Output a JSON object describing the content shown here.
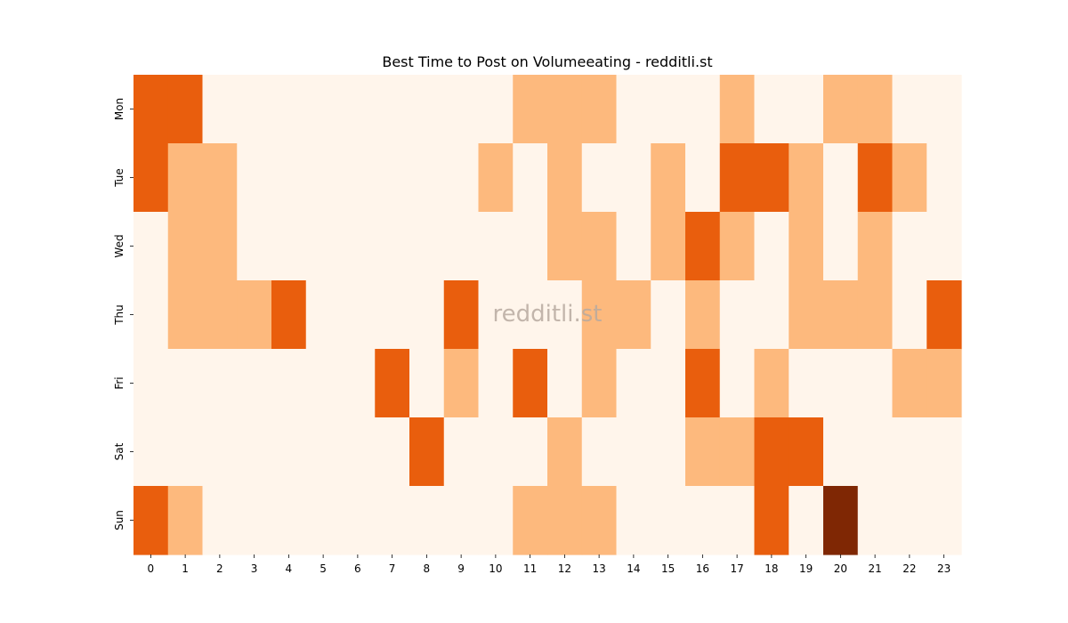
{
  "chart_data": {
    "type": "heatmap",
    "title": "Best Time to Post on Volumeeating - redditli.st",
    "watermark": "redditli.st",
    "x_categories": [
      "0",
      "1",
      "2",
      "3",
      "4",
      "5",
      "6",
      "7",
      "8",
      "9",
      "10",
      "11",
      "12",
      "13",
      "14",
      "15",
      "16",
      "17",
      "18",
      "19",
      "20",
      "21",
      "22",
      "23"
    ],
    "y_categories": [
      "Mon",
      "Tue",
      "Wed",
      "Thu",
      "Fri",
      "Sat",
      "Sun"
    ],
    "values": [
      [
        2,
        2,
        0,
        0,
        0,
        0,
        0,
        0,
        0,
        0,
        0,
        1,
        1,
        1,
        0,
        0,
        0,
        1,
        0,
        0,
        1,
        1,
        0,
        0
      ],
      [
        2,
        1,
        1,
        0,
        0,
        0,
        0,
        0,
        0,
        0,
        1,
        0,
        1,
        0,
        0,
        1,
        0,
        2,
        2,
        1,
        0,
        2,
        1,
        0
      ],
      [
        0,
        1,
        1,
        0,
        0,
        0,
        0,
        0,
        0,
        0,
        0,
        0,
        1,
        1,
        0,
        1,
        2,
        1,
        0,
        1,
        0,
        1,
        0,
        0
      ],
      [
        0,
        1,
        1,
        1,
        2,
        0,
        0,
        0,
        0,
        2,
        0,
        0,
        0,
        1,
        1,
        0,
        1,
        0,
        0,
        1,
        1,
        1,
        0,
        2
      ],
      [
        0,
        0,
        0,
        0,
        0,
        0,
        0,
        2,
        0,
        1,
        0,
        2,
        0,
        1,
        0,
        0,
        2,
        0,
        1,
        0,
        0,
        0,
        1,
        1
      ],
      [
        0,
        0,
        0,
        0,
        0,
        0,
        0,
        0,
        2,
        0,
        0,
        0,
        1,
        0,
        0,
        0,
        1,
        1,
        2,
        2,
        0,
        0,
        0,
        0
      ],
      [
        2,
        1,
        0,
        0,
        0,
        0,
        0,
        0,
        0,
        0,
        0,
        1,
        1,
        1,
        0,
        0,
        0,
        0,
        2,
        0,
        3,
        0,
        0,
        0
      ]
    ],
    "colors": [
      "#fff5eb",
      "#fdb97d",
      "#e95e0d",
      "#7f2704"
    ],
    "colormap": "Oranges"
  }
}
